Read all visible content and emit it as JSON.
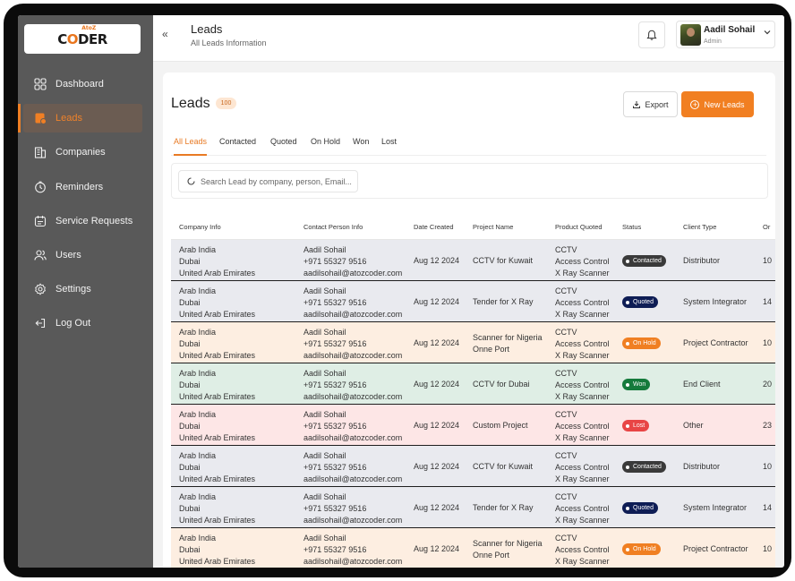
{
  "brand": {
    "logo_text_a": "C",
    "logo_text_b": "O",
    "logo_text_c": "DER",
    "logo_sub": "AtoZ"
  },
  "sidebar": {
    "items": [
      {
        "label": "Dashboard",
        "icon": "grid-icon"
      },
      {
        "label": "Leads",
        "icon": "leads-icon",
        "active": true
      },
      {
        "label": "Companies",
        "icon": "building-icon"
      },
      {
        "label": "Reminders",
        "icon": "clock-icon"
      },
      {
        "label": "Service Requests",
        "icon": "calendar-icon"
      },
      {
        "label": "Users",
        "icon": "users-icon"
      },
      {
        "label": "Settings",
        "icon": "gear-icon"
      },
      {
        "label": "Log Out",
        "icon": "logout-icon"
      }
    ]
  },
  "header": {
    "collapse": "«",
    "title": "Leads",
    "subtitle": "All Leads Information",
    "user": {
      "name": "Aadil Sohail",
      "role": "Admin"
    }
  },
  "page": {
    "title": "Leads",
    "count": "100",
    "export_label": "Export",
    "new_label": "New Leads",
    "tabs": [
      "All Leads",
      "Contacted",
      "Quoted",
      "On Hold",
      "Won",
      "Lost"
    ],
    "search_placeholder": "Search Lead by company, person, Email..."
  },
  "table": {
    "columns": [
      "Company Info",
      "Contact Person Info",
      "Date Created",
      "Project Name",
      "Product Quoted",
      "Status",
      "Client Type",
      "Or"
    ],
    "rows": [
      {
        "company": [
          "Arab India",
          "Dubai",
          "United Arab Emirates"
        ],
        "contact": [
          "Aadil Sohail",
          "+971 55327 9516",
          "aadilsohail@atozcoder.com"
        ],
        "date": "Aug 12 2024",
        "project": [
          "CCTV for Kuwait"
        ],
        "products": [
          "CCTV",
          "Access Control",
          "X Ray Scanner"
        ],
        "status": "Contacted",
        "client_type": "Distributor",
        "other": "10"
      },
      {
        "company": [
          "Arab India",
          "Dubai",
          "United Arab Emirates"
        ],
        "contact": [
          "Aadil Sohail",
          "+971 55327 9516",
          "aadilsohail@atozcoder.com"
        ],
        "date": "Aug 12 2024",
        "project": [
          "Tender for X Ray"
        ],
        "products": [
          "CCTV",
          "Access Control",
          "X Ray Scanner"
        ],
        "status": "Quoted",
        "client_type": "System Integrator",
        "other": "14"
      },
      {
        "company": [
          "Arab India",
          "Dubai",
          "United Arab Emirates"
        ],
        "contact": [
          "Aadil Sohail",
          "+971 55327 9516",
          "aadilsohail@atozcoder.com"
        ],
        "date": "Aug 12 2024",
        "project": [
          "Scanner for Nigeria",
          "Onne Port"
        ],
        "products": [
          "CCTV",
          "Access Control",
          "X Ray Scanner"
        ],
        "status": "On Hold",
        "client_type": "Project Contractor",
        "other": "10"
      },
      {
        "company": [
          "Arab India",
          "Dubai",
          "United Arab Emirates"
        ],
        "contact": [
          "Aadil Sohail",
          "+971 55327 9516",
          "aadilsohail@atozcoder.com"
        ],
        "date": "Aug 12 2024",
        "project": [
          "CCTV for Dubai"
        ],
        "products": [
          "CCTV",
          "Access Control",
          "X Ray Scanner"
        ],
        "status": "Won",
        "client_type": "End Client",
        "other": "20"
      },
      {
        "company": [
          "Arab India",
          "Dubai",
          "United Arab Emirates"
        ],
        "contact": [
          "Aadil Sohail",
          "+971 55327 9516",
          "aadilsohail@atozcoder.com"
        ],
        "date": "Aug 12 2024",
        "project": [
          "Custom Project"
        ],
        "products": [
          "CCTV",
          "Access Control",
          "X Ray Scanner"
        ],
        "status": "Lost",
        "client_type": "Other",
        "other": "23"
      },
      {
        "company": [
          "Arab India",
          "Dubai",
          "United Arab Emirates"
        ],
        "contact": [
          "Aadil Sohail",
          "+971 55327 9516",
          "aadilsohail@atozcoder.com"
        ],
        "date": "Aug 12 2024",
        "project": [
          "CCTV for Kuwait"
        ],
        "products": [
          "CCTV",
          "Access Control",
          "X Ray Scanner"
        ],
        "status": "Contacted",
        "client_type": "Distributor",
        "other": "10"
      },
      {
        "company": [
          "Arab India",
          "Dubai",
          "United Arab Emirates"
        ],
        "contact": [
          "Aadil Sohail",
          "+971 55327 9516",
          "aadilsohail@atozcoder.com"
        ],
        "date": "Aug 12 2024",
        "project": [
          "Tender for X Ray"
        ],
        "products": [
          "CCTV",
          "Access Control",
          "X Ray Scanner"
        ],
        "status": "Quoted",
        "client_type": "System Integrator",
        "other": "14"
      },
      {
        "company": [
          "Arab India",
          "Dubai",
          "United Arab Emirates"
        ],
        "contact": [
          "Aadil Sohail",
          "+971 55327 9516",
          "aadilsohail@atozcoder.com"
        ],
        "date": "Aug 12 2024",
        "project": [
          "Scanner for Nigeria",
          "Onne Port"
        ],
        "products": [
          "CCTV",
          "Access Control",
          "X Ray Scanner"
        ],
        "status": "On Hold",
        "client_type": "Project Contractor",
        "other": "10"
      }
    ]
  },
  "status_colors": {
    "Contacted": {
      "badge": "#3a3a3a",
      "row": "#e9eaef"
    },
    "Quoted": {
      "badge": "#0e1d55",
      "row": "#e9eaef"
    },
    "On Hold": {
      "badge": "#f07f22",
      "row": "#fdeee1"
    },
    "Won": {
      "badge": "#157a3c",
      "row": "#dfeee5"
    },
    "Lost": {
      "badge": "#e84545",
      "row": "#fde6e6"
    }
  },
  "colors": {
    "accent": "#f17f21",
    "sidebar": "#595959"
  }
}
